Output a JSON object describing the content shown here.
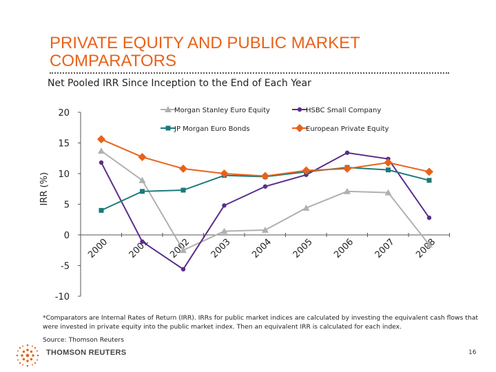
{
  "slide": {
    "title_line1": "PRIVATE EQUITY AND PUBLIC MARKET",
    "title_line2": "COMPARATORS",
    "subtitle": "Net Pooled IRR Since Inception to the End of Each Year",
    "footnote": "*Comparators are Internal Rates of Return (IRR). IRRs for public market indices are calculated by investing the equivalent cash flows that were invested in private equity into the public market index. Then an equivalent IRR is calculated for each index.",
    "source": "Source: Thomson Reuters",
    "logo_text": "THOMSON REUTERS",
    "page_number": "16",
    "accent_color": "#e8621a"
  },
  "chart_data": {
    "type": "line",
    "x": [
      "2000",
      "2001",
      "2002",
      "2003",
      "2004",
      "2005",
      "2006",
      "2007",
      "2008"
    ],
    "ylabel": "IRR (%)",
    "ylim": [
      -10,
      20
    ],
    "yticks": [
      20,
      15,
      10,
      5,
      0,
      -5,
      -10
    ],
    "grid": false,
    "legend_position": "top",
    "series": [
      {
        "name": "Morgan Stanley Euro Equity",
        "color": "#b0b0b0",
        "marker": "triangle",
        "values": [
          13.7,
          8.9,
          -2.5,
          0.6,
          0.8,
          4.4,
          7.1,
          6.9,
          -1.6
        ]
      },
      {
        "name": "HSBC Small Company",
        "color": "#5a2d8a",
        "marker": "circle",
        "values": [
          11.8,
          -1.1,
          -5.6,
          4.8,
          7.9,
          9.8,
          13.4,
          12.4,
          2.8
        ]
      },
      {
        "name": "JP Morgan Euro Bonds",
        "color": "#1b7a7a",
        "marker": "square",
        "values": [
          4.0,
          7.1,
          7.3,
          9.7,
          9.5,
          10.3,
          11.0,
          10.6,
          8.9
        ]
      },
      {
        "name": "European Private Equity",
        "color": "#e8621a",
        "marker": "diamond",
        "values": [
          15.6,
          12.7,
          10.8,
          10.0,
          9.6,
          10.5,
          10.8,
          11.8,
          10.3
        ]
      }
    ]
  }
}
